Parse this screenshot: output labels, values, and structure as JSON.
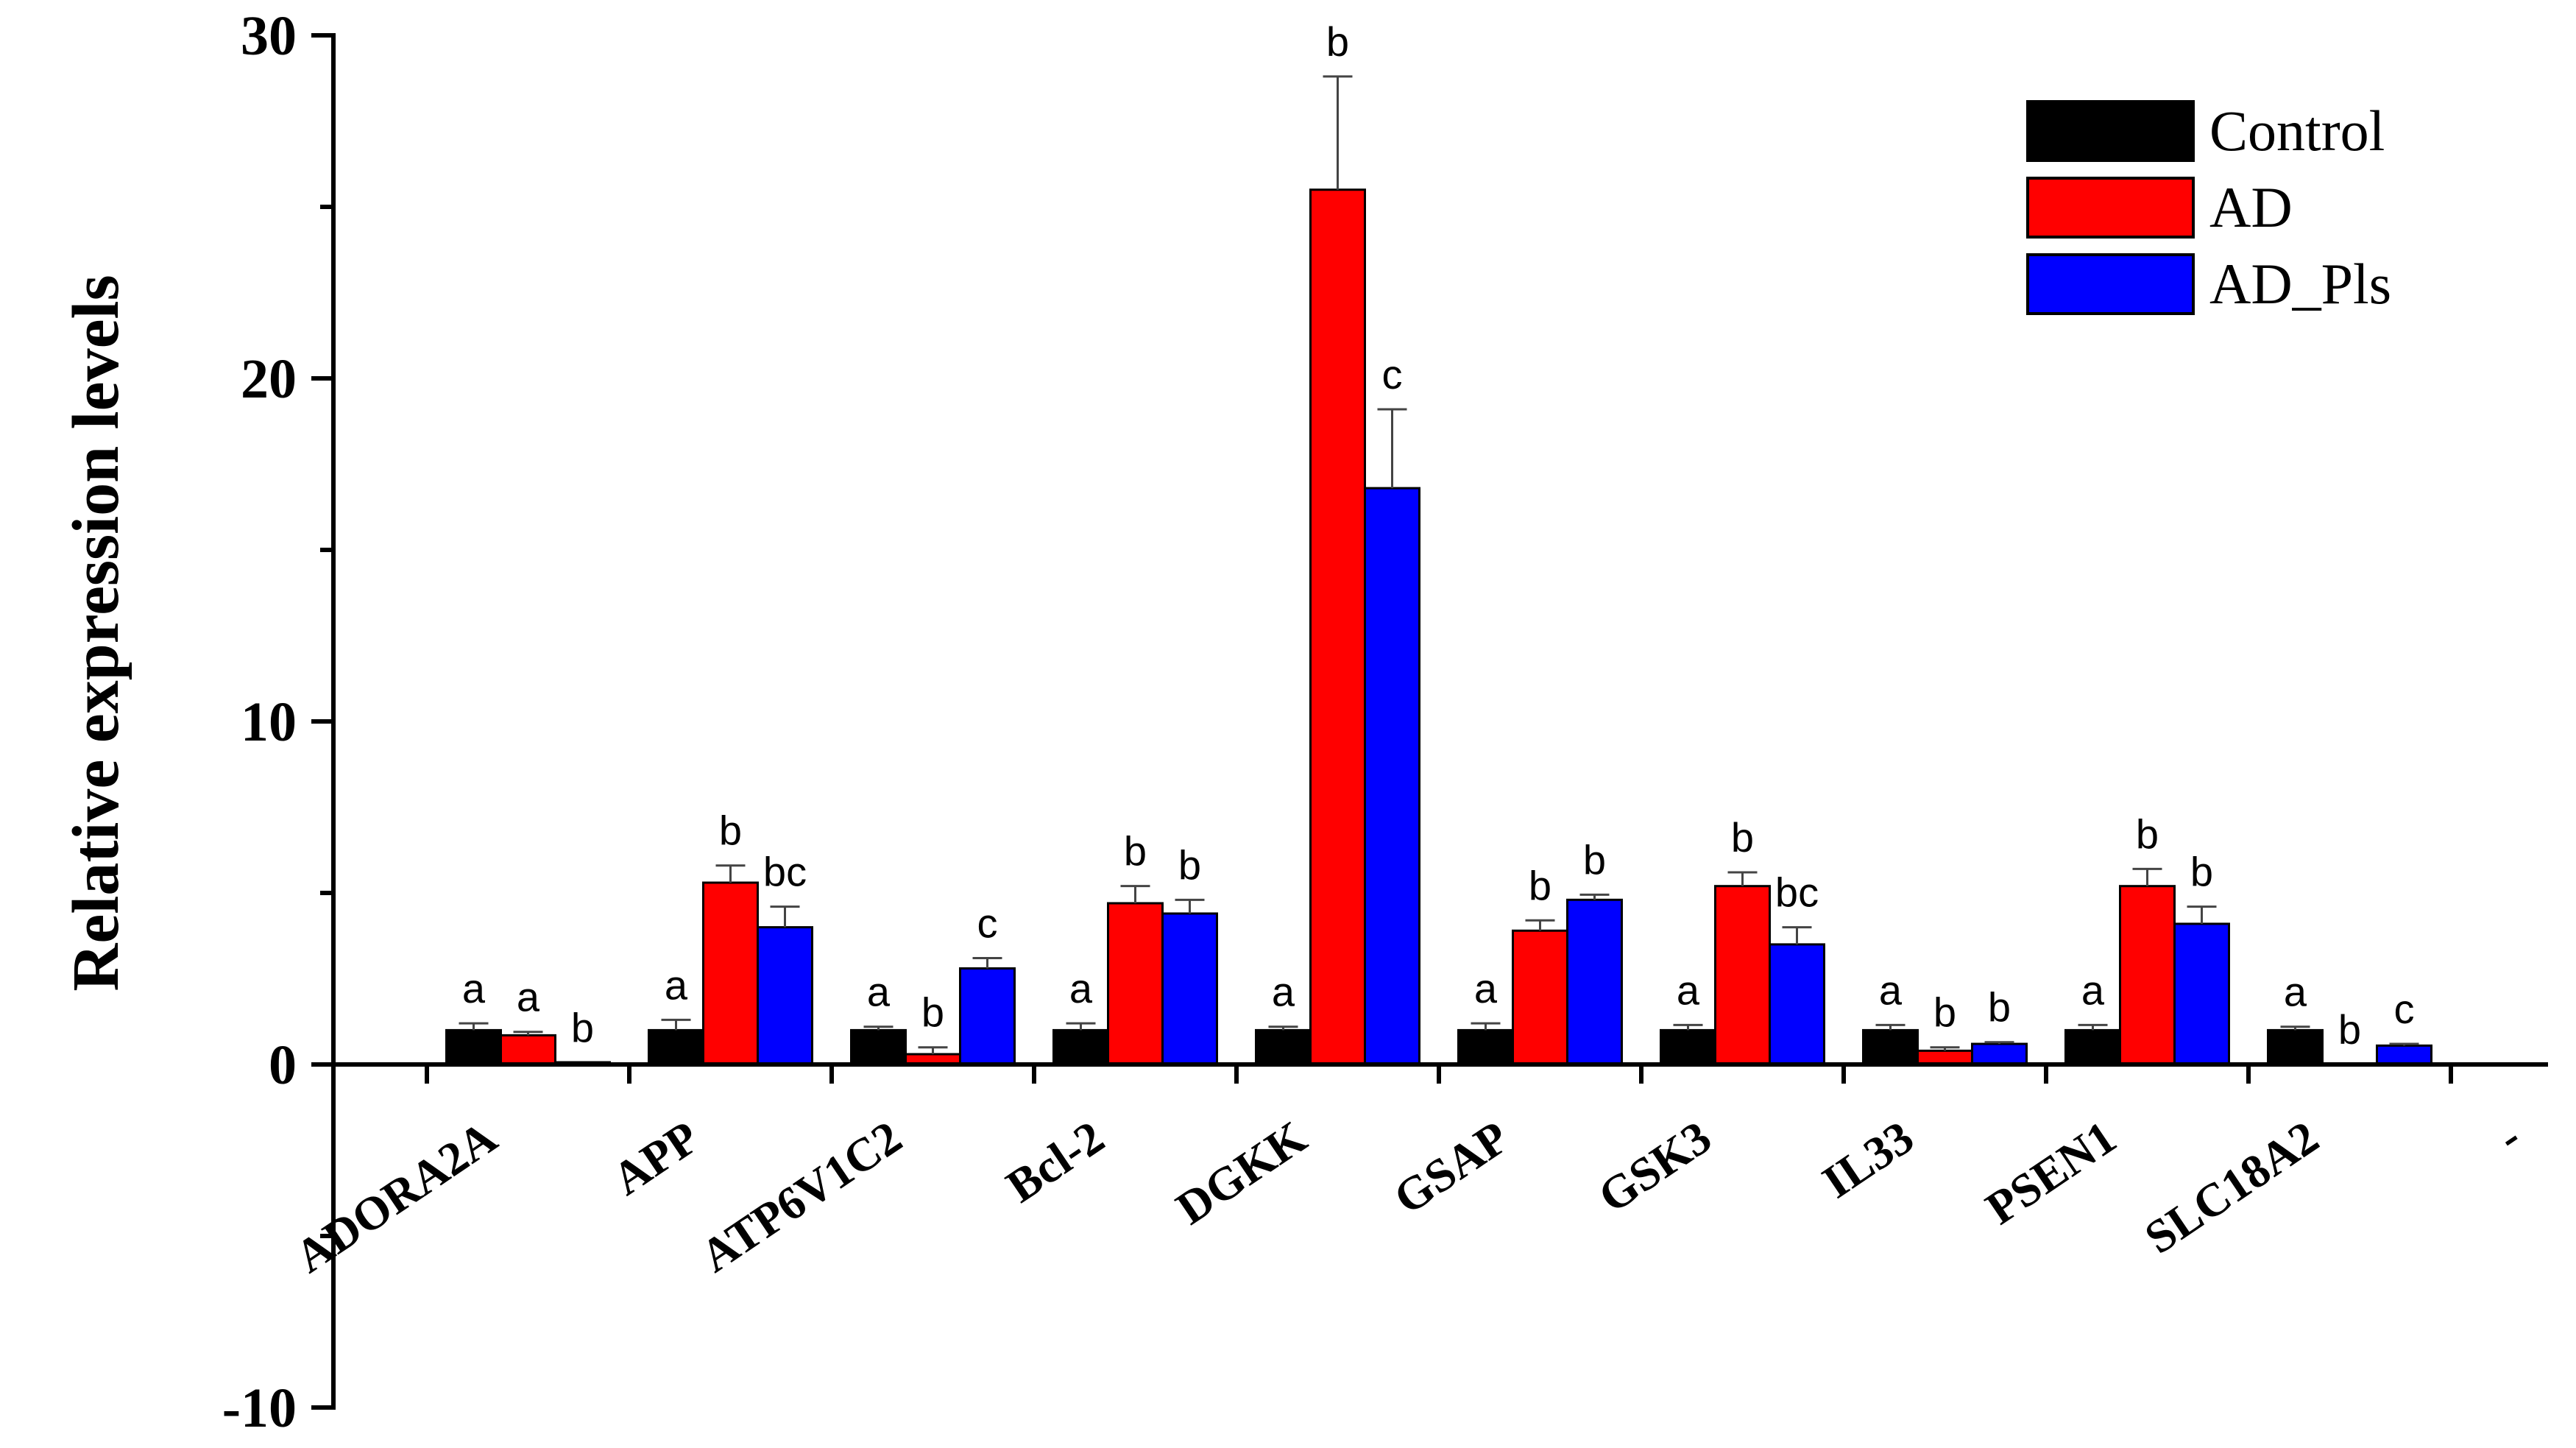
{
  "chart_data": {
    "type": "bar",
    "ylabel": "Relative expression levels",
    "xlabel": "",
    "ylim": [
      -10,
      30
    ],
    "yticks": [
      -10,
      0,
      10,
      20,
      30
    ],
    "grid": false,
    "legend_position": "top-right",
    "categories": [
      "ADORA2A",
      "APP",
      "ATP6V1C2",
      "Bcl-2",
      "DGKK",
      "GSAP",
      "GSK3",
      "IL33",
      "PSEN1",
      "SLC18A2"
    ],
    "extra_tick_label": "-",
    "series": [
      {
        "name": "Control",
        "color": "#000000",
        "values": [
          1.0,
          1.0,
          1.0,
          1.0,
          1.0,
          1.0,
          1.0,
          1.0,
          1.0,
          1.0
        ],
        "errors": [
          0.2,
          0.3,
          0.1,
          0.2,
          0.1,
          0.2,
          0.15,
          0.15,
          0.15,
          0.1
        ],
        "letters": [
          "a",
          "a",
          "a",
          "a",
          "a",
          "a",
          "a",
          "a",
          "a",
          "a"
        ]
      },
      {
        "name": "AD",
        "color": "#ff0000",
        "values": [
          0.85,
          5.3,
          0.3,
          4.7,
          25.5,
          3.9,
          5.2,
          0.4,
          5.2,
          0.0
        ],
        "errors": [
          0.1,
          0.5,
          0.2,
          0.5,
          3.3,
          0.3,
          0.4,
          0.1,
          0.5,
          0.0
        ],
        "letters": [
          "a",
          "b",
          "b",
          "b",
          "b",
          "b",
          "b",
          "b",
          "b",
          "b"
        ]
      },
      {
        "name": "AD_Pls",
        "color": "#0000ff",
        "values": [
          0.05,
          4.0,
          2.8,
          4.4,
          16.8,
          4.8,
          3.5,
          0.6,
          4.1,
          0.55
        ],
        "errors": [
          0.0,
          0.6,
          0.3,
          0.4,
          2.3,
          0.15,
          0.5,
          0.05,
          0.5,
          0.05
        ],
        "letters": [
          "b",
          "bc",
          "c",
          "b",
          "c",
          "b",
          "bc",
          "b",
          "b",
          "c"
        ]
      }
    ]
  }
}
